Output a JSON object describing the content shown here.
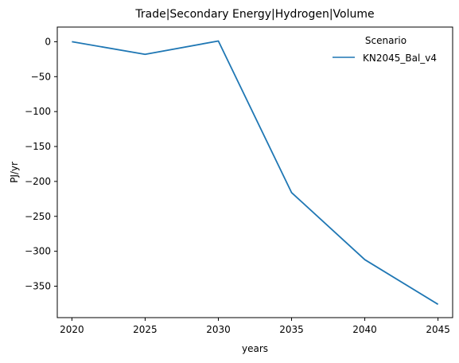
{
  "chart_data": {
    "type": "line",
    "title": "Trade|Secondary Energy|Hydrogen|Volume",
    "xlabel": "years",
    "ylabel": "PJ/yr",
    "x": [
      2020,
      2025,
      2030,
      2035,
      2040,
      2045
    ],
    "xticks": [
      2020,
      2025,
      2030,
      2035,
      2040,
      2045
    ],
    "yticks": [
      0,
      -50,
      -100,
      -150,
      -200,
      -250,
      -300,
      -350
    ],
    "xlim": [
      2019,
      2046
    ],
    "ylim": [
      -395,
      21
    ],
    "grid": false,
    "legend": {
      "title": "Scenario",
      "position": "top-right"
    },
    "series": [
      {
        "name": "KN2045_Bal_v4",
        "color": "#1f77b4",
        "values": [
          0,
          -18,
          1,
          -216,
          -312,
          -376
        ]
      }
    ]
  }
}
